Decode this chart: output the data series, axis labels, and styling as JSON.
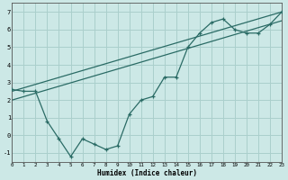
{
  "xlabel": "Humidex (Indice chaleur)",
  "bg_color": "#cce8e6",
  "grid_color": "#aacfcc",
  "line_color": "#2a6b65",
  "x_min": 0,
  "x_max": 23,
  "y_min": -1.5,
  "y_max": 7.5,
  "yticks": [
    -1,
    0,
    1,
    2,
    3,
    4,
    5,
    6,
    7
  ],
  "xticks": [
    0,
    1,
    2,
    3,
    4,
    5,
    6,
    7,
    8,
    9,
    10,
    11,
    12,
    13,
    14,
    15,
    16,
    17,
    18,
    19,
    20,
    21,
    22,
    23
  ],
  "series1_x": [
    0,
    1,
    2,
    3,
    4,
    5,
    6,
    7,
    8,
    9,
    10,
    11,
    12,
    13,
    14,
    15,
    16,
    17,
    18,
    19,
    20,
    21,
    22,
    23
  ],
  "series1_y": [
    2.6,
    2.5,
    2.5,
    0.8,
    -0.2,
    -1.2,
    -0.2,
    -0.5,
    -0.8,
    -0.6,
    1.2,
    2.0,
    2.2,
    3.3,
    3.3,
    5.0,
    5.8,
    6.4,
    6.6,
    6.0,
    5.8,
    5.8,
    6.3,
    7.0
  ],
  "line1_x": [
    0,
    23
  ],
  "line1_y": [
    2.5,
    7.0
  ],
  "line2_x": [
    0,
    23
  ],
  "line2_y": [
    2.0,
    6.5
  ]
}
